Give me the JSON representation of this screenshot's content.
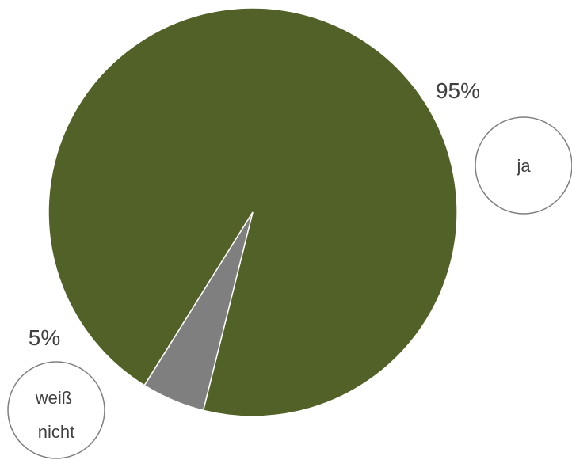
{
  "chart_data": {
    "type": "pie",
    "slices": [
      {
        "label": "ja",
        "percent_label": "95%",
        "value": 95,
        "color": "#526127"
      },
      {
        "label": "weiß nicht",
        "label_lines": [
          "weiß",
          "nicht"
        ],
        "percent_label": "5%",
        "value": 5,
        "color": "#7f7f7f"
      }
    ]
  }
}
